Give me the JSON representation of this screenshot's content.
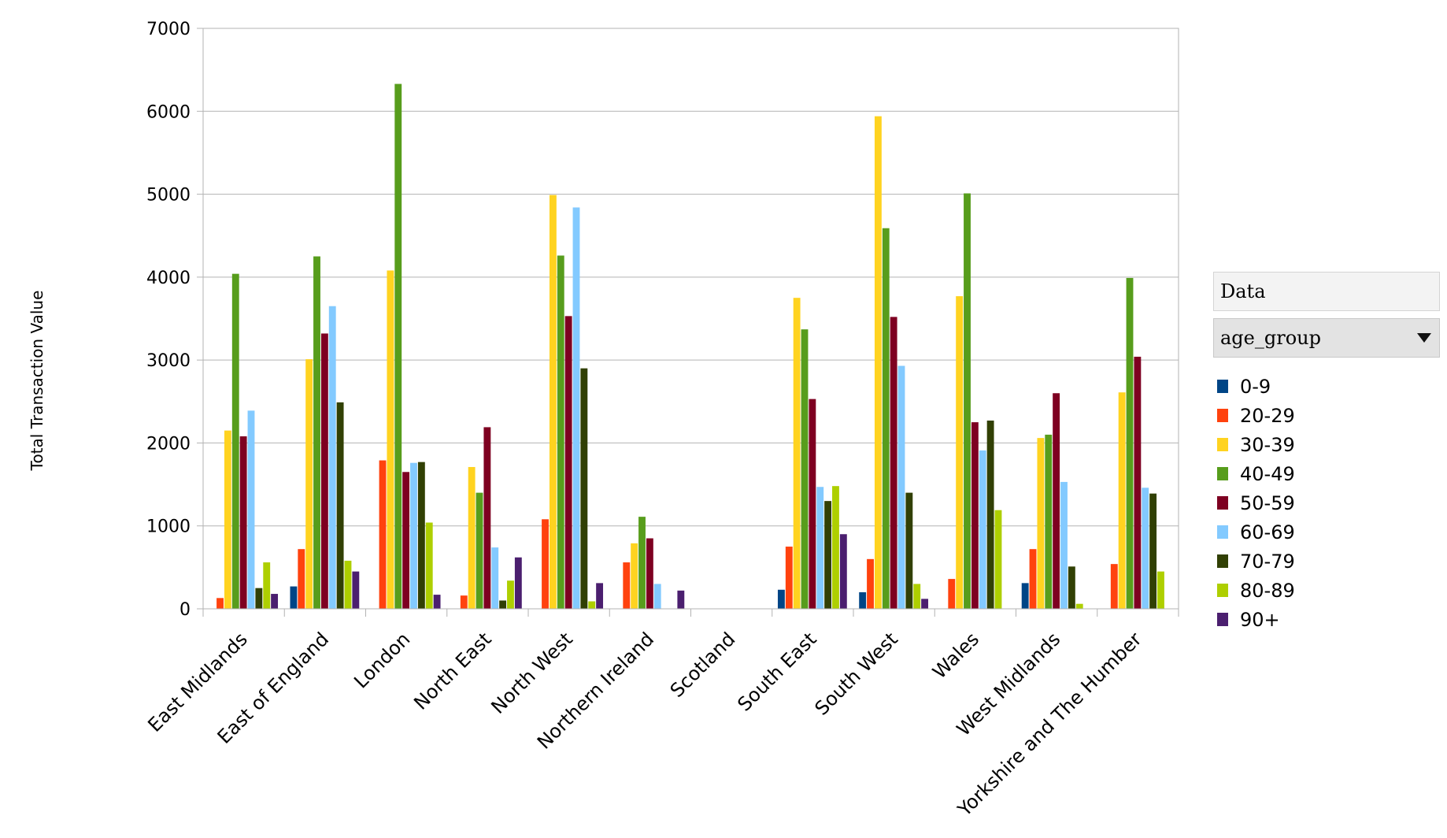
{
  "panel": {
    "header": "Data",
    "field": "age_group"
  },
  "chart_data": {
    "type": "bar",
    "ylabel": "Total Transaction Value",
    "xlabel": "",
    "ylim": [
      0,
      7000
    ],
    "yticks": [
      0,
      1000,
      2000,
      3000,
      4000,
      5000,
      6000,
      7000
    ],
    "grid": true,
    "legend": "right",
    "categories": [
      "East Midlands",
      "East of England",
      "London",
      "North East",
      "North West",
      "Northern Ireland",
      "Scotland",
      "South East",
      "South West",
      "Wales",
      "West Midlands",
      "Yorkshire and The Humber"
    ],
    "series": [
      {
        "name": "0-9",
        "color": "#004586",
        "values": [
          null,
          270,
          null,
          null,
          null,
          null,
          null,
          230,
          200,
          null,
          310,
          null
        ]
      },
      {
        "name": "20-29",
        "color": "#ff420e",
        "values": [
          130,
          720,
          1790,
          160,
          1080,
          560,
          null,
          750,
          600,
          360,
          720,
          540
        ]
      },
      {
        "name": "30-39",
        "color": "#ffd320",
        "values": [
          2150,
          3010,
          4080,
          1710,
          4990,
          790,
          null,
          3750,
          5940,
          3770,
          2060,
          2610
        ]
      },
      {
        "name": "40-49",
        "color": "#579d1c",
        "values": [
          4040,
          4250,
          6330,
          1400,
          4260,
          1110,
          null,
          3370,
          4590,
          5010,
          2100,
          3990
        ]
      },
      {
        "name": "50-59",
        "color": "#7e0021",
        "values": [
          2080,
          3320,
          1650,
          2190,
          3530,
          850,
          null,
          2530,
          3520,
          2250,
          2600,
          3040
        ]
      },
      {
        "name": "60-69",
        "color": "#83caff",
        "values": [
          2390,
          3650,
          1760,
          740,
          4840,
          300,
          null,
          1470,
          2930,
          1910,
          1530,
          1460
        ]
      },
      {
        "name": "70-79",
        "color": "#314004",
        "values": [
          250,
          2490,
          1770,
          100,
          2900,
          null,
          null,
          1300,
          1400,
          2270,
          510,
          1390
        ]
      },
      {
        "name": "80-89",
        "color": "#aecf00",
        "values": [
          560,
          580,
          1040,
          340,
          90,
          null,
          null,
          1480,
          300,
          1190,
          60,
          450
        ]
      },
      {
        "name": "90+",
        "color": "#4b1f6f",
        "values": [
          180,
          450,
          170,
          620,
          310,
          220,
          null,
          900,
          120,
          null,
          null,
          null
        ]
      }
    ]
  }
}
